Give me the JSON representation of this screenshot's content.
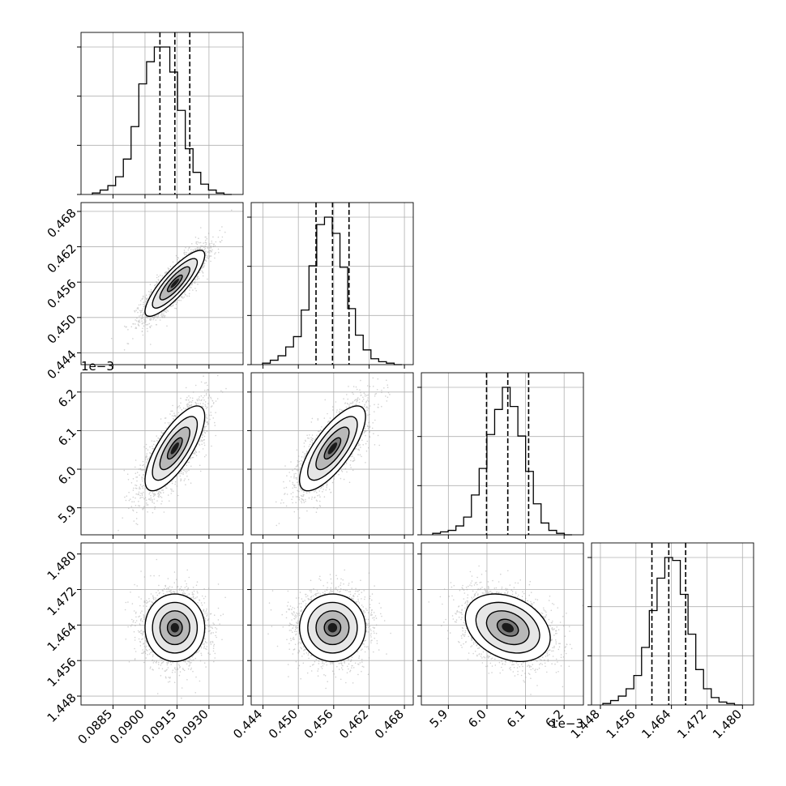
{
  "chart_data": {
    "type": "corner",
    "parameters": [
      {
        "range": [
          0.087,
          0.0946
        ],
        "ticks": [
          0.0885,
          0.09,
          0.0915,
          0.093
        ],
        "tick_labels": [
          "0.0885",
          "0.0900",
          "0.0915",
          "0.0930"
        ],
        "offset_label": "",
        "mean": 0.0914,
        "std": 0.0007,
        "quantiles": [
          0.0907,
          0.0914,
          0.0921
        ],
        "hist": [
          0.01,
          0.03,
          0.06,
          0.12,
          0.24,
          0.46,
          0.75,
          0.9,
          1.0,
          1.0,
          0.83,
          0.57,
          0.31,
          0.15,
          0.07,
          0.03,
          0.01,
          0.0
        ]
      },
      {
        "range": [
          0.442,
          0.4695
        ],
        "ticks": [
          0.444,
          0.45,
          0.456,
          0.462,
          0.468
        ],
        "tick_labels": [
          "0.444",
          "0.450",
          "0.456",
          "0.462",
          "0.468"
        ],
        "offset_label": "",
        "mean": 0.4558,
        "std": 0.0028,
        "quantiles": [
          0.453,
          0.4558,
          0.4586
        ],
        "hist": [
          0.01,
          0.03,
          0.06,
          0.12,
          0.19,
          0.37,
          0.67,
          0.95,
          1.0,
          0.89,
          0.66,
          0.38,
          0.2,
          0.1,
          0.04,
          0.02,
          0.01,
          0.0
        ]
      },
      {
        "range": [
          5.83,
          6.25
        ],
        "ticks": [
          5.9,
          6.0,
          6.1,
          6.2
        ],
        "tick_labels": [
          "5.9",
          "6.0",
          "6.1",
          "6.2"
        ],
        "offset_label": "1e−3",
        "mean": 6.054,
        "std": 0.055,
        "quantiles": [
          5.999,
          6.054,
          6.108
        ],
        "hist": [
          0.01,
          0.02,
          0.03,
          0.06,
          0.12,
          0.27,
          0.45,
          0.68,
          0.85,
          1.0,
          0.87,
          0.67,
          0.43,
          0.21,
          0.08,
          0.03,
          0.01,
          0.0
        ]
      },
      {
        "range": [
          1.446,
          1.4825
        ],
        "ticks": [
          1.448,
          1.456,
          1.464,
          1.472,
          1.48
        ],
        "tick_labels": [
          "1.448",
          "1.456",
          "1.464",
          "1.472",
          "1.480"
        ],
        "offset_label": "",
        "mean": 1.4634,
        "std": 0.0038,
        "quantiles": [
          1.4596,
          1.4634,
          1.4672
        ],
        "hist": [
          0.01,
          0.03,
          0.06,
          0.11,
          0.2,
          0.39,
          0.64,
          0.86,
          1.0,
          0.98,
          0.75,
          0.48,
          0.24,
          0.11,
          0.05,
          0.02,
          0.01,
          0.0
        ]
      }
    ],
    "correlations": [
      [
        1,
        0.85,
        0.75,
        0.0
      ],
      [
        0.85,
        1,
        0.75,
        0.0
      ],
      [
        0.75,
        0.75,
        1,
        -0.3
      ],
      [
        0.0,
        0.0,
        -0.3,
        1
      ]
    ],
    "contour_levels_sigma": [
      0.5,
      1.0,
      1.5,
      2.0
    ],
    "grid": true,
    "quantile_line_style": "dashed"
  }
}
